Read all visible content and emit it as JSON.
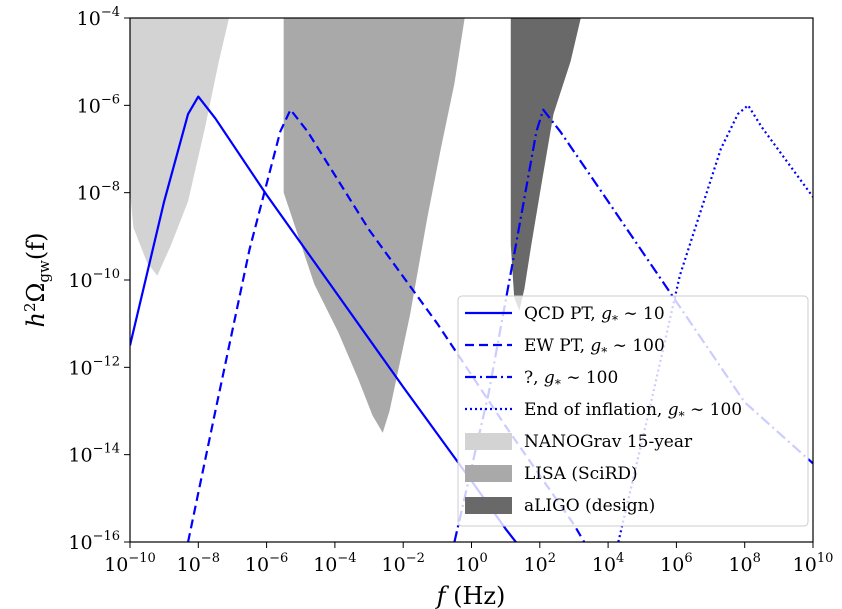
{
  "chart_data": {
    "type": "line",
    "xlabel": "f (Hz)",
    "ylabel": "h²Ω_gw(f)",
    "xscale": "log",
    "yscale": "log",
    "xlim": [
      1e-10,
      10000000000.0
    ],
    "ylim": [
      1e-16,
      0.0001
    ],
    "grid": false,
    "legend_position": "lower-right",
    "x_ticks": [
      {
        "base": "10",
        "exp": "−10"
      },
      {
        "base": "10",
        "exp": "−8"
      },
      {
        "base": "10",
        "exp": "−6"
      },
      {
        "base": "10",
        "exp": "−4"
      },
      {
        "base": "10",
        "exp": "−2"
      },
      {
        "base": "10",
        "exp": "0"
      },
      {
        "base": "10",
        "exp": "2"
      },
      {
        "base": "10",
        "exp": "4"
      },
      {
        "base": "10",
        "exp": "6"
      },
      {
        "base": "10",
        "exp": "8"
      },
      {
        "base": "10",
        "exp": "10"
      }
    ],
    "y_ticks": [
      {
        "base": "10",
        "exp": "−16"
      },
      {
        "base": "10",
        "exp": "−14"
      },
      {
        "base": "10",
        "exp": "−12"
      },
      {
        "base": "10",
        "exp": "−10"
      },
      {
        "base": "10",
        "exp": "−8"
      },
      {
        "base": "10",
        "exp": "−6"
      },
      {
        "base": "10",
        "exp": "−4"
      }
    ],
    "series": [
      {
        "name": "QCD PT, g* ~ 10",
        "color": "#0000ff",
        "style": "solid",
        "points": [
          [
            -10,
            -11.5
          ],
          [
            -9,
            -8.2
          ],
          [
            -8.3,
            -6.2
          ],
          [
            -8.0,
            -5.8
          ],
          [
            -7.5,
            -6.3
          ],
          [
            -6.0,
            -8.05
          ],
          [
            -4.0,
            -10.25
          ],
          [
            -2.0,
            -12.45
          ],
          [
            0.0,
            -14.6
          ],
          [
            1.0,
            -15.7
          ],
          [
            1.3,
            -16
          ]
        ]
      },
      {
        "name": "EW PT, g* ~ 100",
        "color": "#0000ff",
        "style": "dashed",
        "points": [
          [
            -8.3,
            -16
          ],
          [
            -7.5,
            -13.0
          ],
          [
            -6.5,
            -9.3
          ],
          [
            -5.6,
            -6.6
          ],
          [
            -5.3,
            -6.1
          ],
          [
            -4.8,
            -6.6
          ],
          [
            -3.0,
            -8.85
          ],
          [
            -1.0,
            -11.0
          ],
          [
            1.0,
            -13.35
          ],
          [
            3.0,
            -15.6
          ],
          [
            3.3,
            -16
          ]
        ]
      },
      {
        "name": "?, g* ~ 100",
        "color": "#0000ff",
        "style": "dashdot",
        "points": [
          [
            -0.5,
            -16
          ],
          [
            0.5,
            -12.6
          ],
          [
            1.3,
            -9.2
          ],
          [
            1.9,
            -6.6
          ],
          [
            2.1,
            -6.1
          ],
          [
            2.6,
            -6.6
          ],
          [
            4.0,
            -8.2
          ],
          [
            6.0,
            -10.5
          ],
          [
            8.0,
            -12.8
          ],
          [
            10.0,
            -14.2
          ]
        ]
      },
      {
        "name": "End of inflation, g* ~ 100",
        "color": "#0000ff",
        "style": "dotted",
        "points": [
          [
            4.3,
            -16
          ],
          [
            5.2,
            -13.0
          ],
          [
            6.1,
            -9.9
          ],
          [
            7.3,
            -7.0
          ],
          [
            7.8,
            -6.2
          ],
          [
            8.1,
            -6.0
          ],
          [
            8.5,
            -6.5
          ],
          [
            10.0,
            -8.1
          ]
        ]
      }
    ],
    "regions": [
      {
        "name": "NANOGrav 15-year",
        "color": "#d3d3d3",
        "points": [
          [
            -10,
            -4
          ],
          [
            -7.1,
            -4
          ],
          [
            -7.4,
            -5.0
          ],
          [
            -7.8,
            -6.5
          ],
          [
            -8.3,
            -8.2
          ],
          [
            -8.8,
            -9.2
          ],
          [
            -9.2,
            -9.9
          ],
          [
            -9.5,
            -9.6
          ],
          [
            -9.9,
            -8.8
          ],
          [
            -10,
            -8.0
          ]
        ]
      },
      {
        "name": "LISA (SciRD)",
        "color": "#a9a9a9",
        "points": [
          [
            -5.5,
            -4
          ],
          [
            -0.2,
            -4
          ],
          [
            -0.5,
            -5.5
          ],
          [
            -0.9,
            -7.0
          ],
          [
            -1.3,
            -8.6
          ],
          [
            -1.8,
            -10.8
          ],
          [
            -2.4,
            -13.0
          ],
          [
            -2.6,
            -13.5
          ],
          [
            -2.9,
            -13.1
          ],
          [
            -3.3,
            -12.3
          ],
          [
            -3.9,
            -11.2
          ],
          [
            -4.6,
            -10.1
          ],
          [
            -5.5,
            -8.0
          ]
        ]
      },
      {
        "name": "aLIGO (design)",
        "color": "#696969",
        "points": [
          [
            1.15,
            -4
          ],
          [
            3.2,
            -4
          ],
          [
            2.9,
            -5.0
          ],
          [
            2.4,
            -6.2
          ],
          [
            2.05,
            -7.8
          ],
          [
            1.75,
            -9.2
          ],
          [
            1.55,
            -10.2
          ],
          [
            1.4,
            -10.7
          ],
          [
            1.25,
            -10.4
          ],
          [
            1.15,
            -9.2
          ]
        ]
      }
    ]
  },
  "legend": {
    "entries": [
      {
        "label": "QCD PT, ",
        "var": "g",
        "sub": "*",
        "rest": " ∼ 10"
      },
      {
        "label": "EW PT, ",
        "var": "g",
        "sub": "*",
        "rest": " ∼ 100"
      },
      {
        "label": "?, ",
        "var": "g",
        "sub": "*",
        "rest": " ∼ 100"
      },
      {
        "label": "End of inflation, ",
        "var": "g",
        "sub": "*",
        "rest": " ∼ 100"
      },
      {
        "label": "NANOGrav 15-year",
        "var": "",
        "sub": "",
        "rest": ""
      },
      {
        "label": "LISA (SciRD)",
        "var": "",
        "sub": "",
        "rest": ""
      },
      {
        "label": "aLIGO (design)",
        "var": "",
        "sub": "",
        "rest": ""
      }
    ]
  },
  "axis_labels": {
    "x_var": "f",
    "x_unit": " (Hz)",
    "y_h": "h",
    "y_sup": "2",
    "y_omega": "Ω",
    "y_sub": "gw",
    "y_arg": "(f)"
  }
}
